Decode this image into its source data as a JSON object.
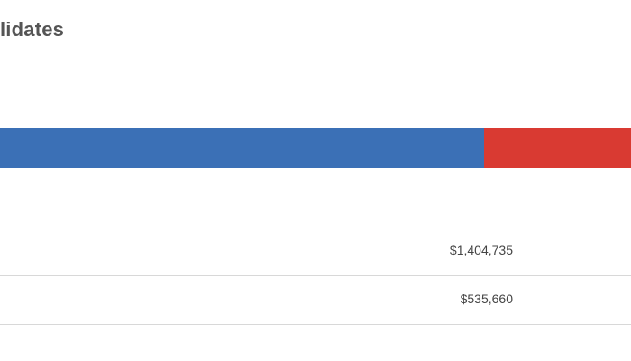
{
  "heading": {
    "text": "lidates"
  },
  "split_bar": {
    "segments": [
      {
        "party": "blue",
        "color": "#3b70b6",
        "fraction": 0.7675
      },
      {
        "party": "red",
        "color": "#d93a32",
        "fraction": 0.2325
      }
    ]
  },
  "amounts": {
    "rows": [
      {
        "value": "$1,404,735"
      },
      {
        "value": "$535,660"
      }
    ]
  }
}
